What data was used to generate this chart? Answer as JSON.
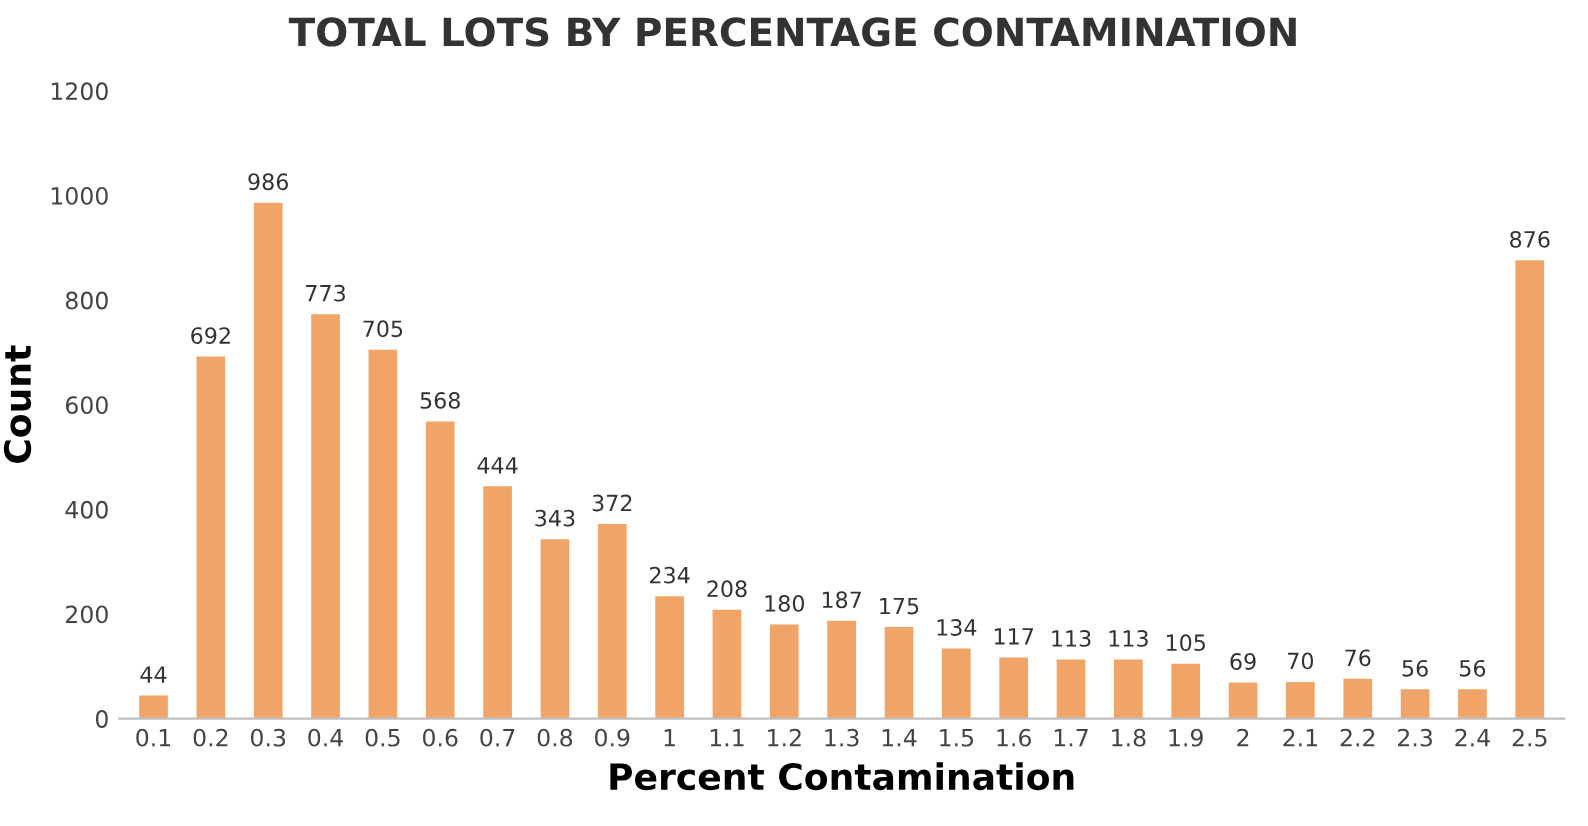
{
  "chart_data": {
    "type": "bar",
    "title": "TOTAL LOTS BY PERCENTAGE CONTAMINATION",
    "xlabel": "Percent Contamination",
    "ylabel": "Count",
    "categories": [
      "0.1",
      "0.2",
      "0.3",
      "0.4",
      "0.5",
      "0.6",
      "0.7",
      "0.8",
      "0.9",
      "1",
      "1.1",
      "1.2",
      "1.3",
      "1.4",
      "1.5",
      "1.6",
      "1.7",
      "1.8",
      "1.9",
      "2",
      "2.1",
      "2.2",
      "2.3",
      "2.4",
      "2.5"
    ],
    "values": [
      44,
      692,
      986,
      773,
      705,
      568,
      444,
      343,
      372,
      234,
      208,
      180,
      187,
      175,
      134,
      117,
      113,
      113,
      105,
      69,
      70,
      76,
      56,
      56,
      876
    ],
    "color": "#f0a467",
    "ylim": [
      0,
      1200
    ],
    "yticks": [
      0,
      200,
      400,
      600,
      800,
      1000,
      1200
    ],
    "grid": false,
    "data_labels": true
  }
}
